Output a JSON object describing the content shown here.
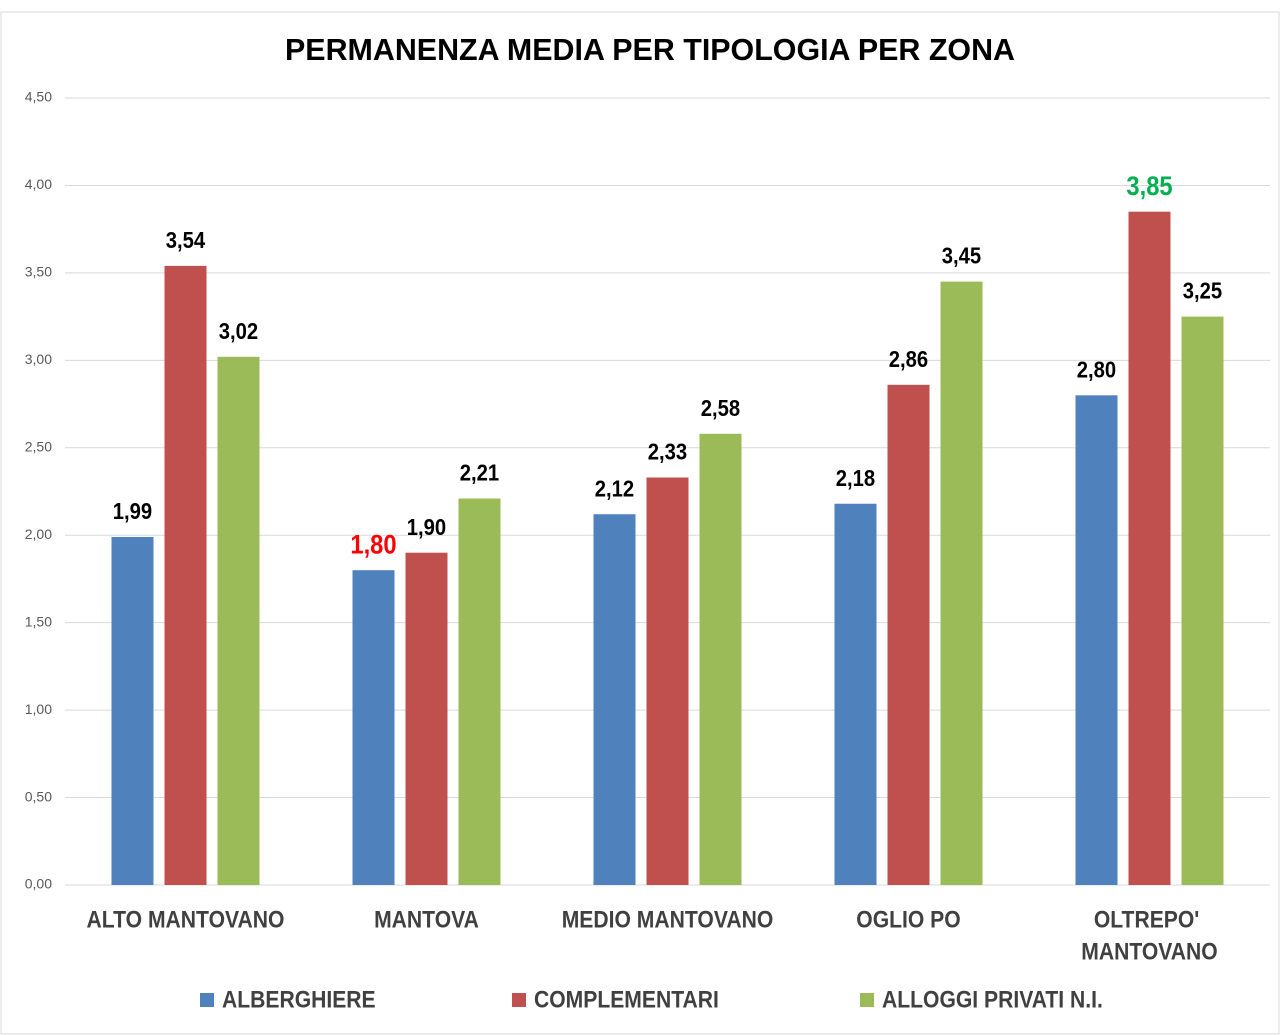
{
  "chart_data": {
    "type": "bar",
    "title": "PERMANENZA MEDIA PER TIPOLOGIA PER ZONA",
    "categories": [
      "ALTO MANTOVANO",
      "MANTOVA",
      "MEDIO MANTOVANO",
      "OGLIO PO",
      "OLTREPO' MANTOVANO"
    ],
    "series": [
      {
        "name": "ALBERGHIERE",
        "color": "#4f81bd",
        "values": [
          1.99,
          1.8,
          2.12,
          2.18,
          2.8
        ],
        "value_labels": [
          "1,99",
          "1,80",
          "2,12",
          "2,18",
          "2,80"
        ],
        "value_label_colors": [
          "#000000",
          "#ff0000",
          "#000000",
          "#000000",
          "#000000"
        ]
      },
      {
        "name": "COMPLEMENTARI",
        "color": "#c0504d",
        "values": [
          3.54,
          1.9,
          2.33,
          2.86,
          3.85
        ],
        "value_labels": [
          "3,54",
          "1,90",
          "2,33",
          "2,86",
          "3,85"
        ],
        "value_label_colors": [
          "#000000",
          "#000000",
          "#000000",
          "#000000",
          "#00b050"
        ]
      },
      {
        "name": "ALLOGGI PRIVATI N.I.",
        "color": "#9bbb59",
        "values": [
          3.02,
          2.21,
          2.58,
          3.45,
          3.25
        ],
        "value_labels": [
          "3,02",
          "2,21",
          "2,58",
          "3,45",
          "3,25"
        ],
        "value_label_colors": [
          "#000000",
          "#000000",
          "#000000",
          "#000000",
          "#000000"
        ]
      }
    ],
    "ylim": [
      0,
      4.5
    ],
    "yticks": [
      {
        "value": 0,
        "label": "0,00"
      },
      {
        "value": 0.5,
        "label": "0,50"
      },
      {
        "value": 1,
        "label": "1,00"
      },
      {
        "value": 1.5,
        "label": "1,50"
      },
      {
        "value": 2,
        "label": "2,00"
      },
      {
        "value": 2.5,
        "label": "2,50"
      },
      {
        "value": 3,
        "label": "3,00"
      },
      {
        "value": 3.5,
        "label": "3,50"
      },
      {
        "value": 4,
        "label": "4,00"
      },
      {
        "value": 4.5,
        "label": "4,50"
      }
    ],
    "grid": true,
    "legend": "bottom"
  }
}
